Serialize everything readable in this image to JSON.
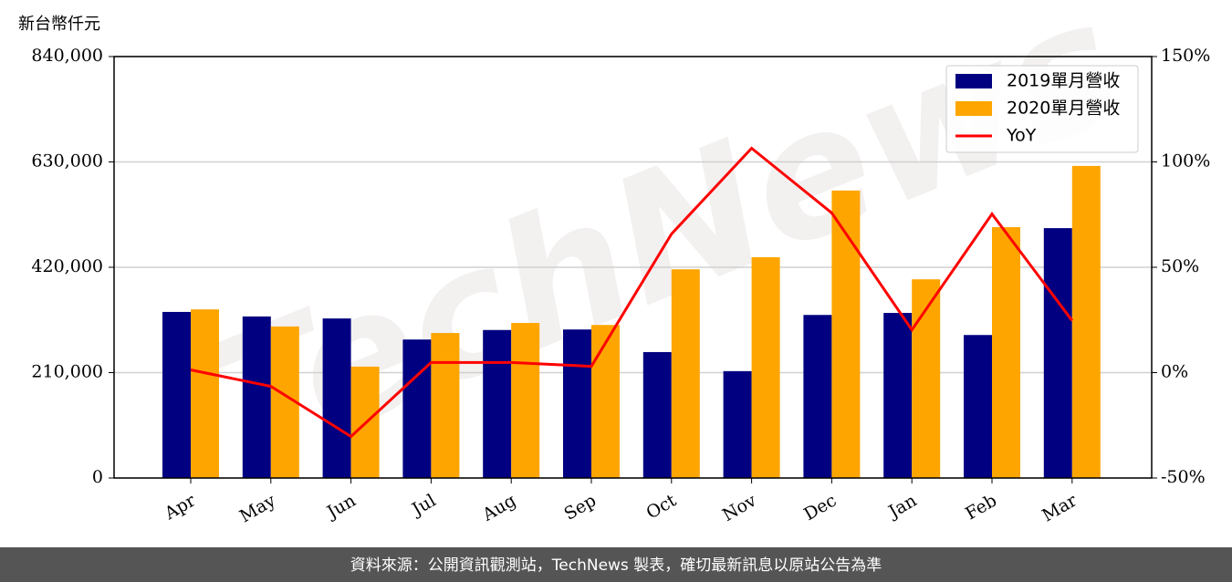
{
  "chart_data": {
    "type": "bar",
    "unit_label": "新台幣仟元",
    "watermark": "TechNews",
    "footer": "資料來源：公開資訊觀測站，TechNews 製表，確切最新訊息以原站公告為準",
    "categories": [
      "Apr",
      "May",
      "Jun",
      "Jul",
      "Aug",
      "Sep",
      "Oct",
      "Nov",
      "Dec",
      "Jan",
      "Feb",
      "Mar"
    ],
    "series": [
      {
        "name": "2019單月營收",
        "color": "#000080",
        "type": "bar",
        "values": [
          331000,
          322000,
          318000,
          276000,
          295000,
          296000,
          251000,
          213000,
          325000,
          329000,
          285000,
          498000
        ]
      },
      {
        "name": "2020單月營收",
        "color": "#ffa500",
        "type": "bar",
        "values": [
          336000,
          302000,
          222000,
          289000,
          309000,
          305000,
          416000,
          440000,
          573000,
          396000,
          500000,
          622000
        ]
      },
      {
        "name": "YoY",
        "color": "#ff0000",
        "type": "line",
        "axis": "y2",
        "values": [
          1.3,
          -6.5,
          -30.3,
          4.8,
          4.8,
          3,
          65.8,
          106.5,
          75.8,
          20.3,
          75.3,
          24.7
        ]
      }
    ],
    "ylim": [
      0,
      840000
    ],
    "yticks": [
      0,
      {
        "value": 210000,
        "label": "210,000"
      },
      {
        "value": 420000,
        "label": "420,000"
      },
      {
        "value": 630000,
        "label": "630,000"
      },
      {
        "value": 840000,
        "label": "840,000"
      }
    ],
    "y2lim": [
      -50,
      150
    ],
    "y2ticks": [
      {
        "value": -50,
        "label": "-50%"
      },
      {
        "value": 0,
        "label": "0%"
      },
      {
        "value": 50,
        "label": "50%"
      },
      {
        "value": 100,
        "label": "100%"
      },
      {
        "value": 150,
        "label": "150%"
      }
    ],
    "grid": true,
    "legend": "upper right"
  }
}
